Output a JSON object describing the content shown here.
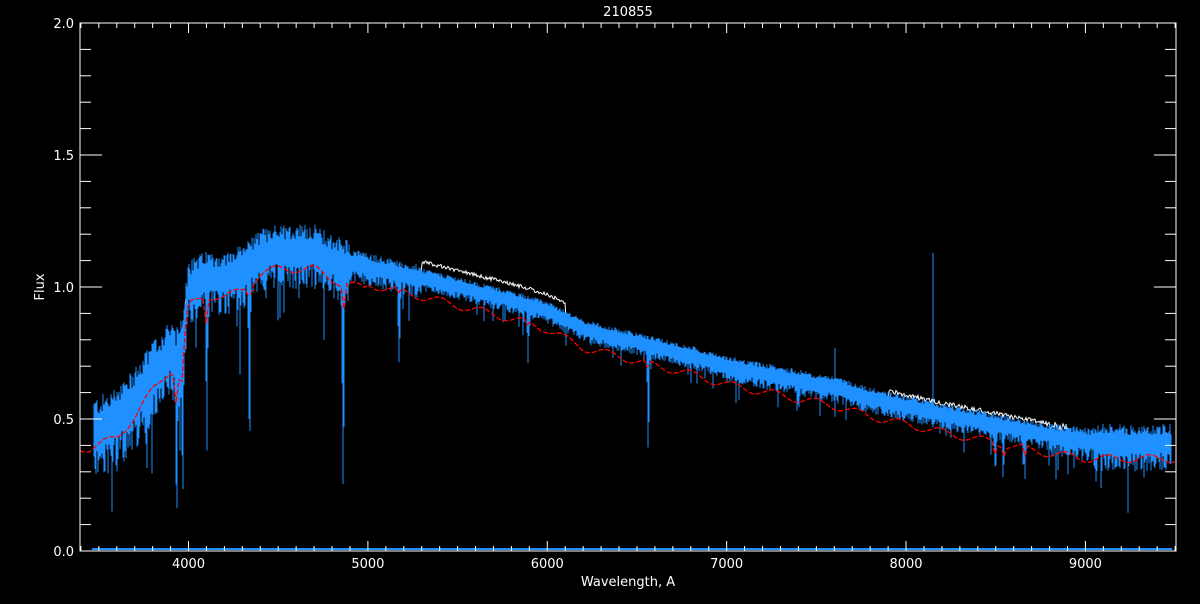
{
  "chart_data": {
    "type": "line",
    "title": "210855",
    "xlabel": "Wavelength, A",
    "ylabel": "Flux",
    "xlim": [
      3395,
      9505
    ],
    "ylim": [
      0.0,
      2.0
    ],
    "x_ticks": [
      4000,
      5000,
      6000,
      7000,
      8000,
      9000
    ],
    "x_tick_labels": [
      "4000",
      "5000",
      "6000",
      "7000",
      "8000",
      "9000"
    ],
    "y_ticks": [
      0.0,
      0.5,
      1.0,
      1.5,
      2.0
    ],
    "y_tick_labels": [
      "0.0",
      "0.5",
      "1.0",
      "1.5",
      "2.0"
    ],
    "grid": false,
    "background": "#000000",
    "colors": {
      "observed": "#1e90ff",
      "reference": "#ffffff",
      "model": "#ff0000",
      "axes": "#ffffff"
    },
    "continuum": {
      "x": [
        3450,
        3600,
        3700,
        3800,
        3900,
        3950,
        4000,
        4100,
        4200,
        4300,
        4400,
        4500,
        4700,
        4800,
        4900,
        5000,
        5200,
        5500,
        5800,
        6000,
        6200,
        6500,
        6800,
        7000,
        7300,
        7600,
        7800,
        8000,
        8200,
        8500,
        8800,
        9000,
        9200,
        9480
      ],
      "y": [
        0.48,
        0.52,
        0.6,
        0.7,
        0.78,
        0.74,
        1.02,
        1.06,
        1.05,
        1.08,
        1.14,
        1.16,
        1.16,
        1.12,
        1.1,
        1.08,
        1.05,
        1.0,
        0.95,
        0.91,
        0.84,
        0.79,
        0.74,
        0.7,
        0.66,
        0.62,
        0.58,
        0.55,
        0.52,
        0.48,
        0.44,
        0.42,
        0.42,
        0.42
      ]
    },
    "absorption_lines": [
      {
        "x": 3934,
        "depth": 0.65
      },
      {
        "x": 3968,
        "depth": 0.6
      },
      {
        "x": 4102,
        "depth": 0.55
      },
      {
        "x": 4340,
        "depth": 0.6
      },
      {
        "x": 4861,
        "depth": 0.7
      },
      {
        "x": 5175,
        "depth": 0.3
      },
      {
        "x": 5893,
        "depth": 0.2
      },
      {
        "x": 6563,
        "depth": 0.5
      },
      {
        "x": 8498,
        "depth": 0.3
      },
      {
        "x": 8542,
        "depth": 0.35
      },
      {
        "x": 8662,
        "depth": 0.3
      }
    ],
    "emission_spikes": [
      {
        "x": 8150,
        "y": 1.13
      },
      {
        "x": 7605,
        "y": 0.77
      }
    ]
  }
}
